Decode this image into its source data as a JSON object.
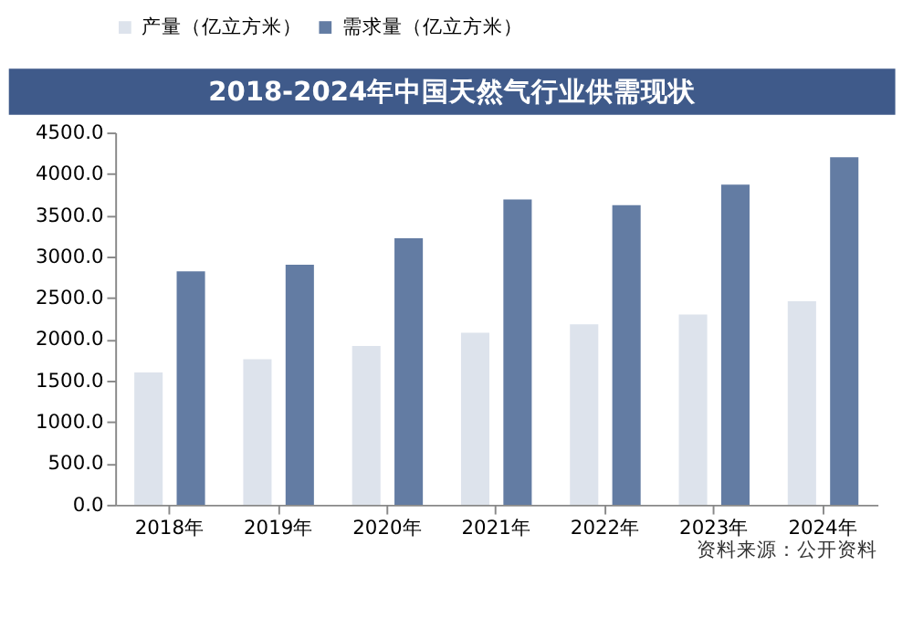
{
  "chart_data": {
    "type": "bar",
    "title": "2018-2024年中国天然气行业供需现状",
    "categories": [
      "2018年",
      "2019年",
      "2020年",
      "2021年",
      "2022年",
      "2023年",
      "2024年"
    ],
    "series": [
      {
        "name": "产量（亿立方米）",
        "color": "#dde3ec",
        "values": [
          1600,
          1760,
          1920,
          2080,
          2180,
          2300,
          2460
        ]
      },
      {
        "name": "需求量（亿立方米）",
        "color": "#637ca3",
        "values": [
          2820,
          2900,
          3220,
          3690,
          3620,
          3870,
          4200
        ]
      }
    ],
    "ylim": [
      0,
      4500
    ],
    "yticks": [
      {
        "value": 0,
        "label": "0.0"
      },
      {
        "value": 500,
        "label": "500.0"
      },
      {
        "value": 1000,
        "label": "1000.0"
      },
      {
        "value": 1500,
        "label": "1500.0"
      },
      {
        "value": 2000,
        "label": "2000.0"
      },
      {
        "value": 2500,
        "label": "2500.0"
      },
      {
        "value": 3000,
        "label": "3000.0"
      },
      {
        "value": 3500,
        "label": "3500.0"
      },
      {
        "value": 4000,
        "label": "4000.0"
      },
      {
        "value": 4500,
        "label": "4500.0"
      }
    ],
    "grid": false,
    "legend": "top",
    "annotations": [
      "资料来源：公开资料"
    ]
  }
}
